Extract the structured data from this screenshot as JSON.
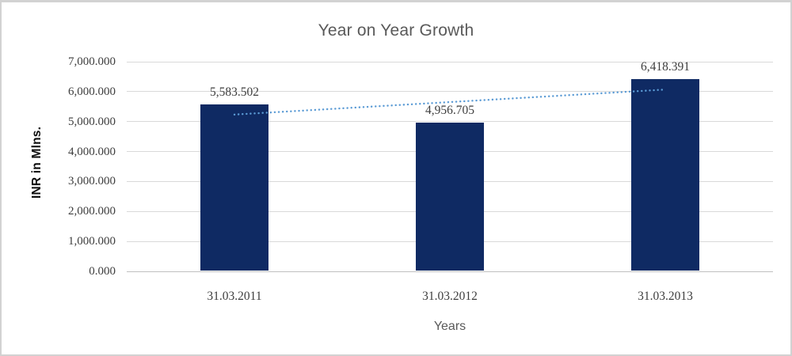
{
  "chart_data": {
    "type": "bar",
    "title": "Year on Year Growth",
    "categories": [
      "31.03.2011",
      "31.03.2012",
      "31.03.2013"
    ],
    "values": [
      5583.502,
      4956.705,
      6418.391
    ],
    "data_labels": [
      "5,583.502",
      "4,956.705",
      "6,418.391"
    ],
    "xlabel": "Years",
    "ylabel": "INR in Mlns.",
    "ylim": [
      0,
      7000
    ],
    "ytick_step": 1000,
    "ytick_labels": [
      "0.000",
      "1,000.000",
      "2,000.000",
      "3,000.000",
      "4,000.000",
      "5,000.000",
      "6,000.000",
      "7,000.000"
    ],
    "grid": true,
    "legend": "none",
    "trendline": {
      "type": "linear",
      "style": "dotted",
      "y_start": 5235.4,
      "y_end": 6070.3
    }
  },
  "colors": {
    "bar": "#0f2a63",
    "trendline": "#5b9bd5",
    "gridline": "#d9d9d9",
    "axis_line": "#bfbfbf",
    "title_text": "#595959",
    "axis_title_text": "#595959",
    "tick_text": "#3d3d3d",
    "data_label_text": "#3d3d3d",
    "y_axis_title_text": "#0d0d0d",
    "frame_border": "#d2d2d2"
  }
}
